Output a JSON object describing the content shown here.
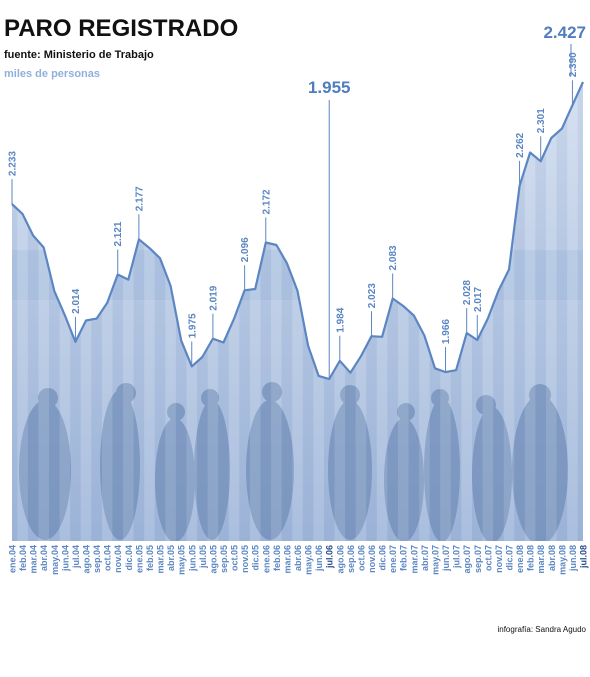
{
  "chart_data": {
    "type": "line",
    "title": "PARO REGISTRADO",
    "subtitle": "fuente: Ministerio de Trabajo",
    "unit_label": "miles de personas",
    "credit": "infografía: Sandra Agudo",
    "color": "#5b86c2",
    "categories": [
      "ene.04",
      "feb.04",
      "mar.04",
      "abr.04",
      "may.04",
      "jun.04",
      "jul.04",
      "ago.04",
      "sep.04",
      "oct.04",
      "nov.04",
      "dic.04",
      "ene.05",
      "feb.05",
      "mar.05",
      "abr.05",
      "may.05",
      "jun.05",
      "jul.05",
      "ago.05",
      "sep.05",
      "oct.05",
      "nov.05",
      "dic.05",
      "ene.06",
      "feb.06",
      "mar.06",
      "abr.06",
      "may.06",
      "jun.06",
      "jul.06",
      "ago.06",
      "sep.06",
      "oct.06",
      "nov.06",
      "dic.06",
      "ene.07",
      "feb.07",
      "mar.07",
      "abr.07",
      "may.07",
      "jun.07",
      "jul.07",
      "ago.07",
      "sep.07",
      "oct.07",
      "nov.07",
      "dic.07",
      "ene.08",
      "feb.08",
      "mar.08",
      "abr.08",
      "may.08",
      "jun.08",
      "jul.08"
    ],
    "values": [
      2233,
      2217,
      2183,
      2164,
      2095,
      2056,
      2014,
      2048,
      2051,
      2076,
      2121,
      2113,
      2177,
      2163,
      2147,
      2103,
      2016,
      1975,
      1990,
      2019,
      2013,
      2051,
      2096,
      2098,
      2172,
      2168,
      2139,
      2095,
      2008,
      1960,
      1955,
      1984,
      1965,
      1991,
      2023,
      2022,
      2083,
      2071,
      2056,
      2024,
      1972,
      1966,
      1969,
      2028,
      2017,
      2051,
      2095,
      2129,
      2262,
      2315,
      2301,
      2338,
      2353,
      2390,
      2427
    ],
    "value_labels": [
      "2.233",
      null,
      null,
      null,
      null,
      null,
      "2.014",
      null,
      null,
      null,
      "2.121",
      null,
      "2.177",
      null,
      null,
      null,
      null,
      "1.975",
      null,
      "2.019",
      null,
      null,
      "2.096",
      null,
      "2.172",
      null,
      null,
      null,
      null,
      null,
      "1.955",
      "1.984",
      null,
      null,
      "2.023",
      null,
      "2.083",
      null,
      null,
      null,
      null,
      "1.966",
      null,
      "2.028",
      "2.017",
      null,
      null,
      null,
      "2.262",
      null,
      "2.301",
      null,
      null,
      "2.390",
      "2.427"
    ],
    "highlight": [
      30,
      54
    ]
  }
}
